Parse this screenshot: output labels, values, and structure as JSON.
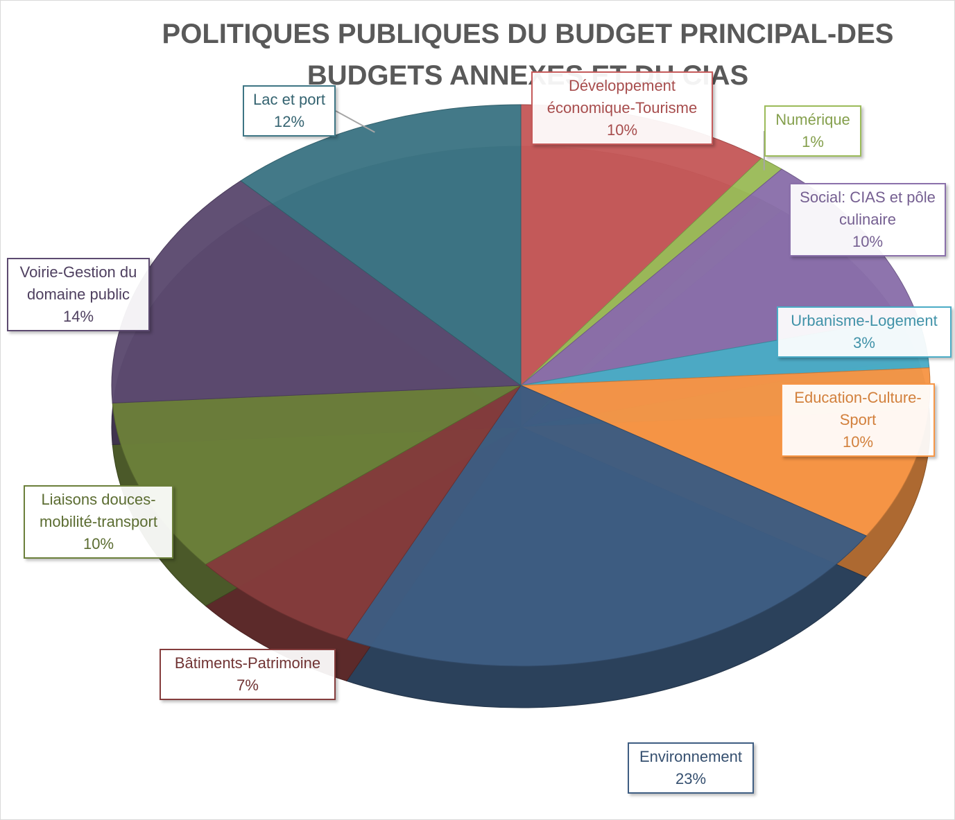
{
  "chart_data": {
    "type": "pie",
    "title": "POLITIQUES PUBLIQUES DU BUDGET PRINCIPAL-DES BUDGETS ANNEXES ET DU CIAS",
    "categories": [
      "Développement économique-Tourisme",
      "Numérique",
      "Social: CIAS et pôle culinaire",
      "Urbanisme-Logement",
      "Education-Culture-Sport",
      "Environnement",
      "Bâtiments-Patrimoine",
      "Liaisons douces-mobilité-transport",
      "Voirie-Gestion du domaine public",
      "Lac et port"
    ],
    "values": [
      10,
      1,
      10,
      3,
      10,
      23,
      7,
      10,
      14,
      12
    ],
    "value_labels": [
      "10%",
      "1%",
      "10%",
      "3%",
      "10%",
      "23%",
      "7%",
      "10%",
      "14%",
      "12%"
    ],
    "colors": [
      "#c55a5a",
      "#9bbb59",
      "#8a70aa",
      "#4bacc6",
      "#f79646",
      "#3e5d82",
      "#843c3c",
      "#6b7f3a",
      "#5c4a70",
      "#3d7584"
    ]
  }
}
